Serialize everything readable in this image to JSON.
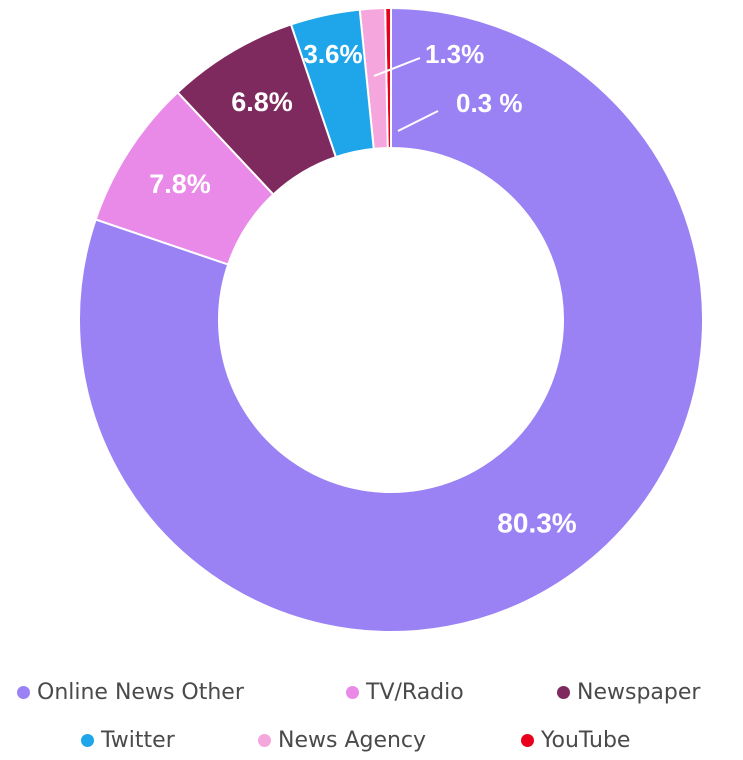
{
  "chart_data": {
    "type": "pie",
    "variant": "donut",
    "title": "",
    "legend_position": "bottom",
    "slices": [
      {
        "name": "YouTube",
        "value": 0.3,
        "label": "0.3 %",
        "color": "#e8001c"
      },
      {
        "name": "News Agency",
        "value": 1.3,
        "label": "1.3%",
        "color": "#f5a6dc"
      },
      {
        "name": "Twitter",
        "value": 3.6,
        "label": "3.6%",
        "color": "#1fa6ea"
      },
      {
        "name": "Newspaper",
        "value": 6.8,
        "label": "6.8%",
        "color": "#7e2a5e"
      },
      {
        "name": "TV/Radio",
        "value": 7.8,
        "label": "7.8%",
        "color": "#e98ae8"
      },
      {
        "name": "Online News Other",
        "value": 80.3,
        "label": "80.3%",
        "color": "#9a82f5"
      }
    ],
    "legend": {
      "rows": [
        [
          {
            "label": "Online News Other",
            "color": "#9a82f5"
          },
          {
            "label": "TV/Radio",
            "color": "#e98ae8"
          },
          {
            "label": "Newspaper",
            "color": "#7e2a5e"
          }
        ],
        [
          {
            "label": "Twitter",
            "color": "#1fa6ea"
          },
          {
            "label": "News Agency",
            "color": "#f5a6dc"
          },
          {
            "label": "YouTube",
            "color": "#e8001c"
          }
        ]
      ]
    }
  }
}
